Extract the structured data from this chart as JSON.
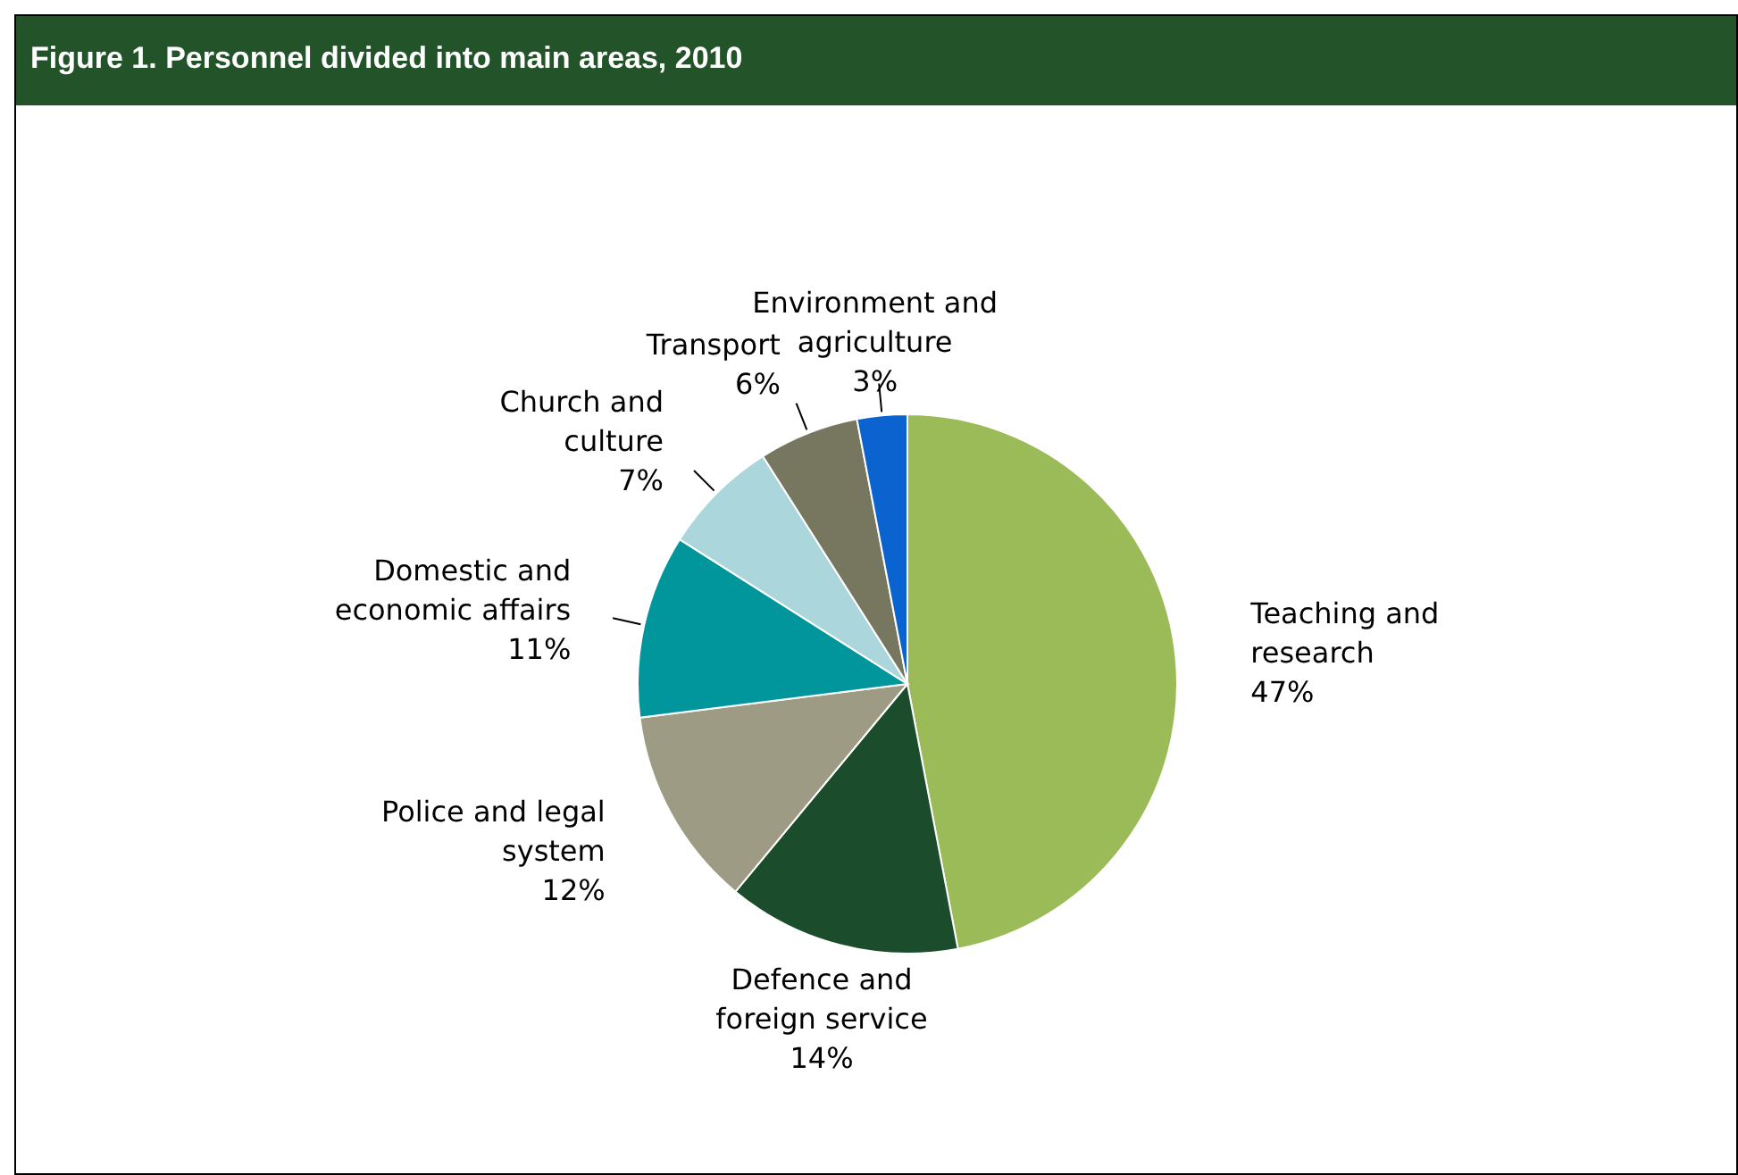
{
  "chart_data": {
    "type": "pie",
    "title": "Figure 1. Personnel divided into main areas, 2010",
    "categories": [
      "Teaching and research",
      "Defence and foreign service",
      "Police and legal system",
      "Domestic and economic affairs",
      "Church and culture",
      "Transport",
      "Environment and agriculture"
    ],
    "values": [
      47,
      14,
      12,
      11,
      7,
      6,
      3
    ],
    "value_labels": [
      "47%",
      "14%",
      "12%",
      "11%",
      "7%",
      "6%",
      "3%"
    ],
    "colors": [
      "#9bbb59",
      "#1b4d2c",
      "#9e9b85",
      "#00969c",
      "#aad6dc",
      "#777760",
      "#0b63d0"
    ],
    "legend": false
  }
}
